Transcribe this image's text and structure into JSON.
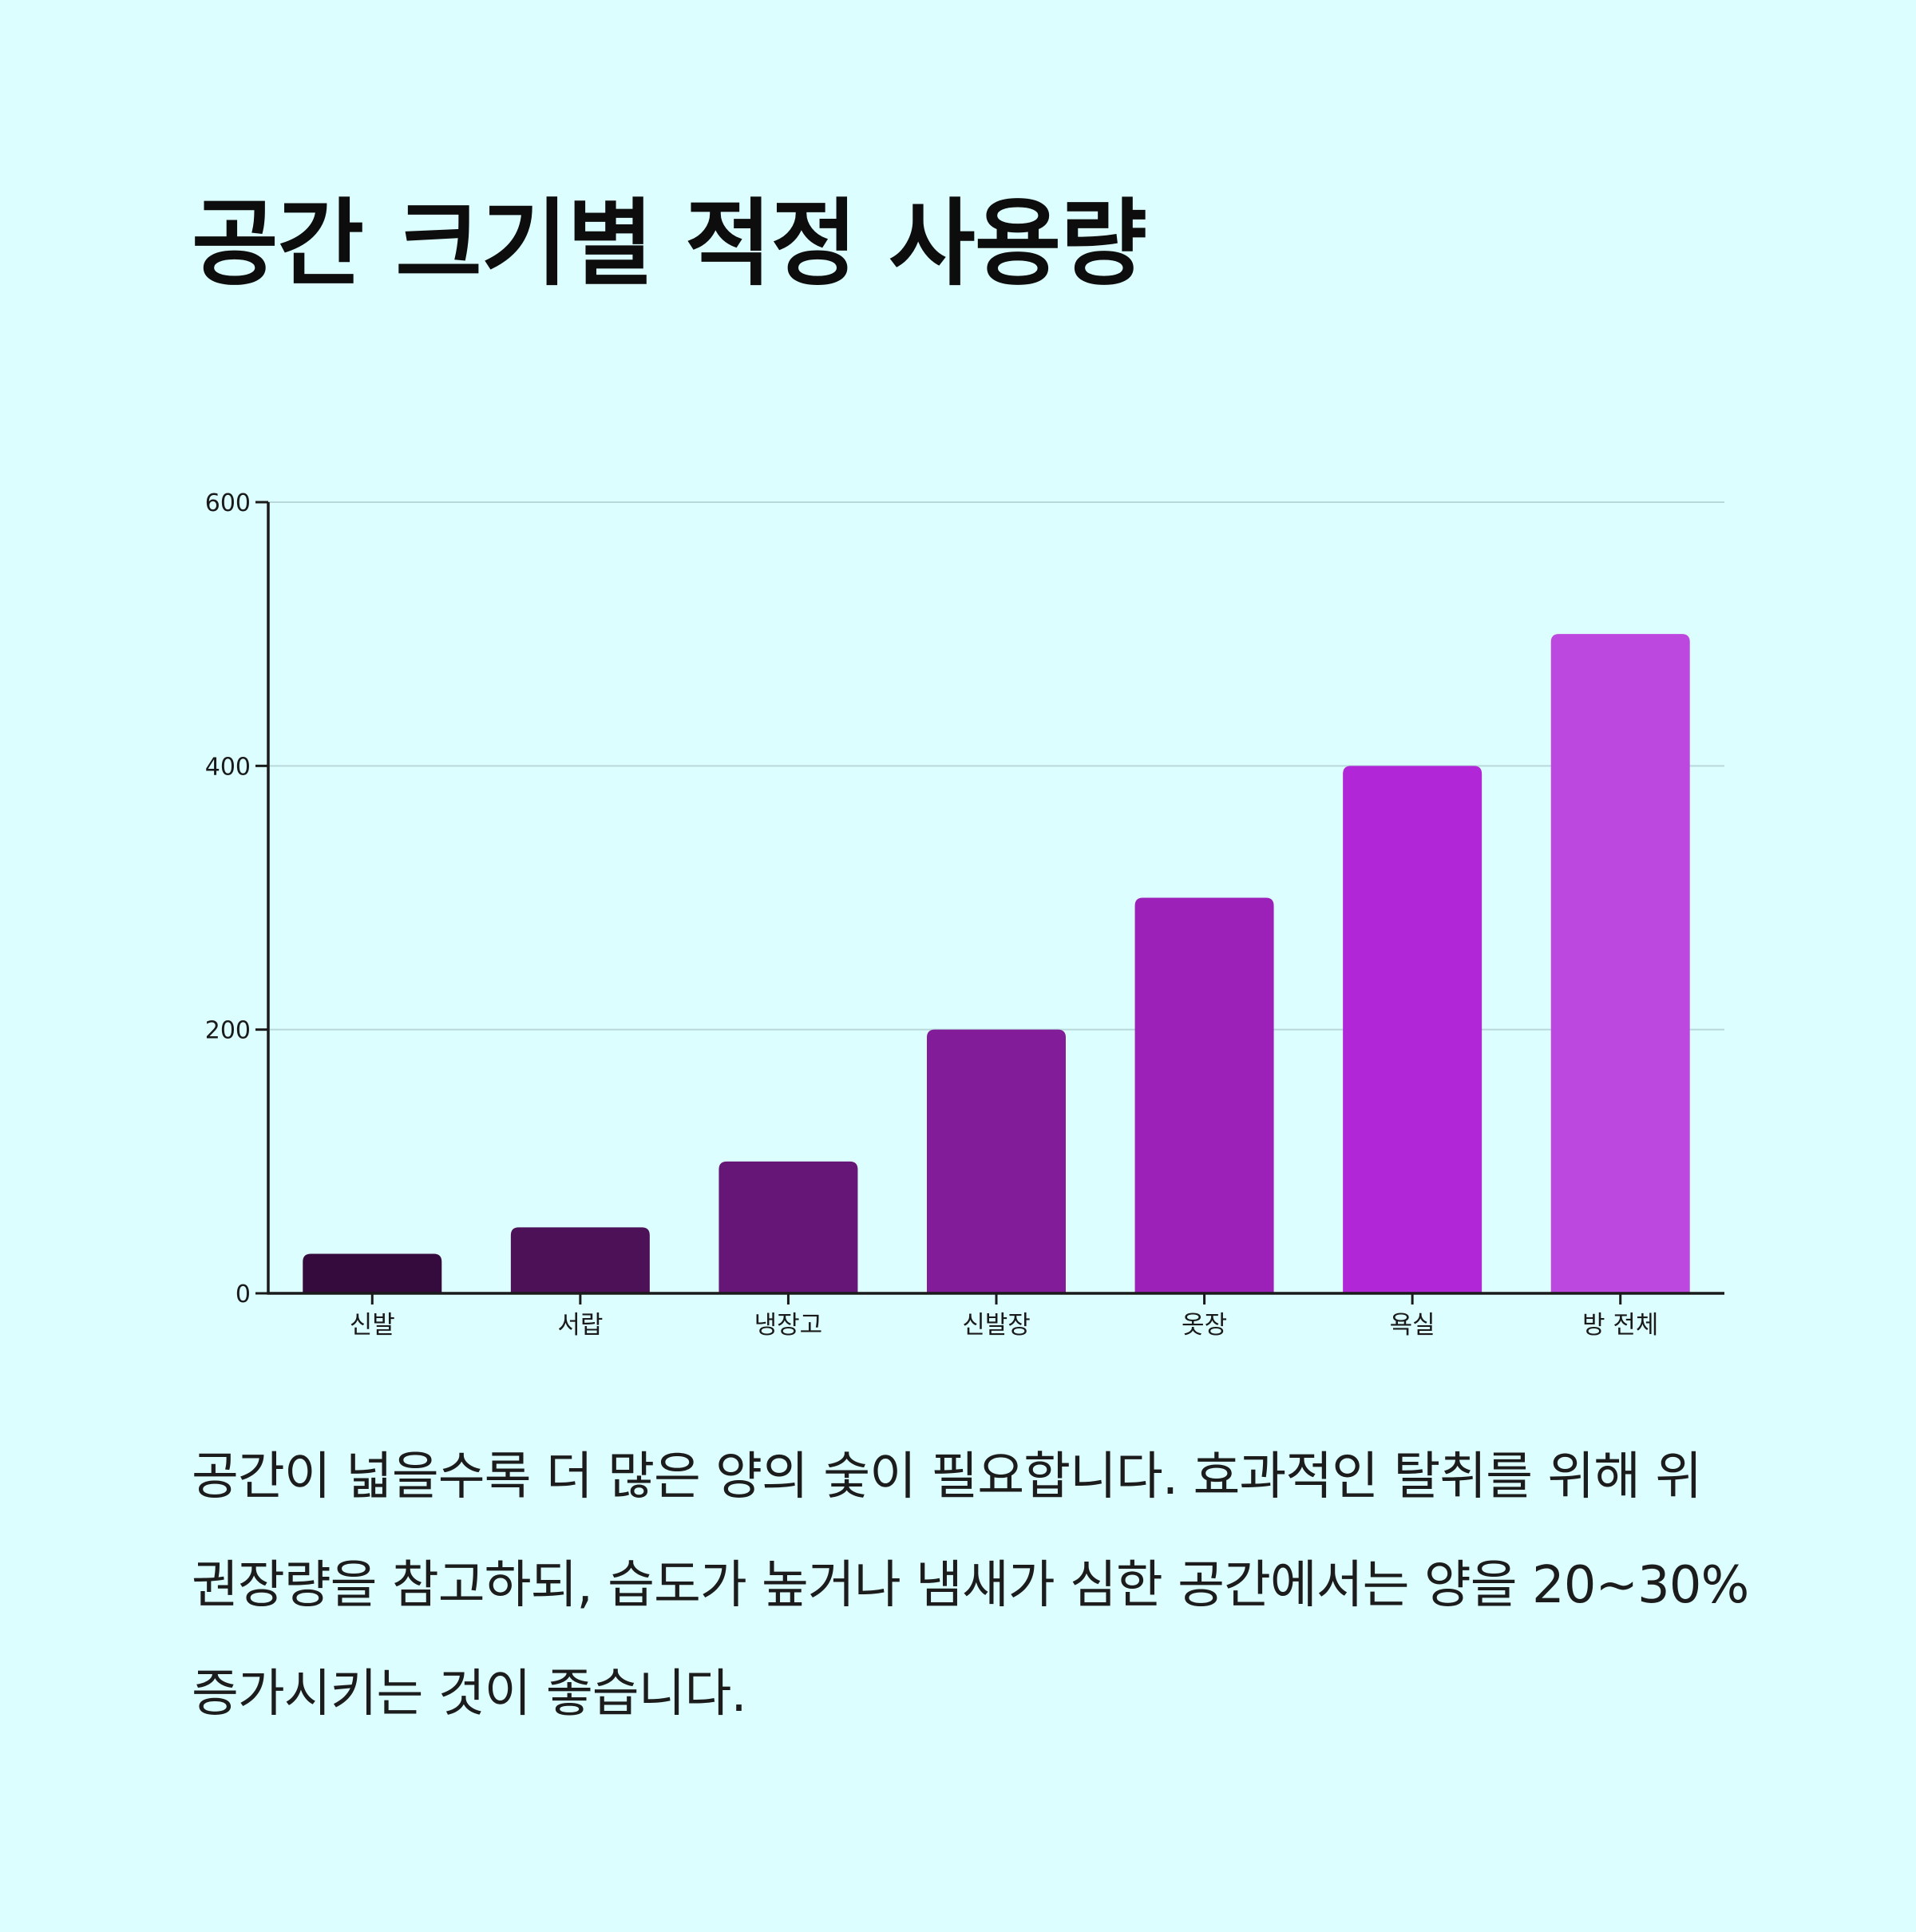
{
  "page": {
    "background": "#dcfefe",
    "title": "공간 크기별 적정 사용량",
    "description": "공간이 넓을수록 더 많은 양의 숯이 필요합니다. 효과적인 탈취를 위해 위 권장량을 참고하되, 습도가 높거나 냄새가 심한 공간에서는 양을 20~30% 증가시키는 것이 좋습니다."
  },
  "chart_data": {
    "type": "bar",
    "title": "",
    "xlabel": "",
    "ylabel": "",
    "categories": [
      "신발",
      "서랍",
      "냉장고",
      "신발장",
      "옷장",
      "욕실",
      "방 전체"
    ],
    "values": [
      30,
      50,
      100,
      200,
      300,
      400,
      500
    ],
    "colors": [
      "#350b3e",
      "#4c1157",
      "#661676",
      "#831c98",
      "#9c21b8",
      "#b127d8",
      "#bd48e0"
    ],
    "ylim": [
      0,
      600
    ],
    "yticks": [
      0,
      200,
      400,
      600
    ],
    "grid": true,
    "grid_color": "#b8d8da",
    "axis_color": "#1a1a1a"
  }
}
